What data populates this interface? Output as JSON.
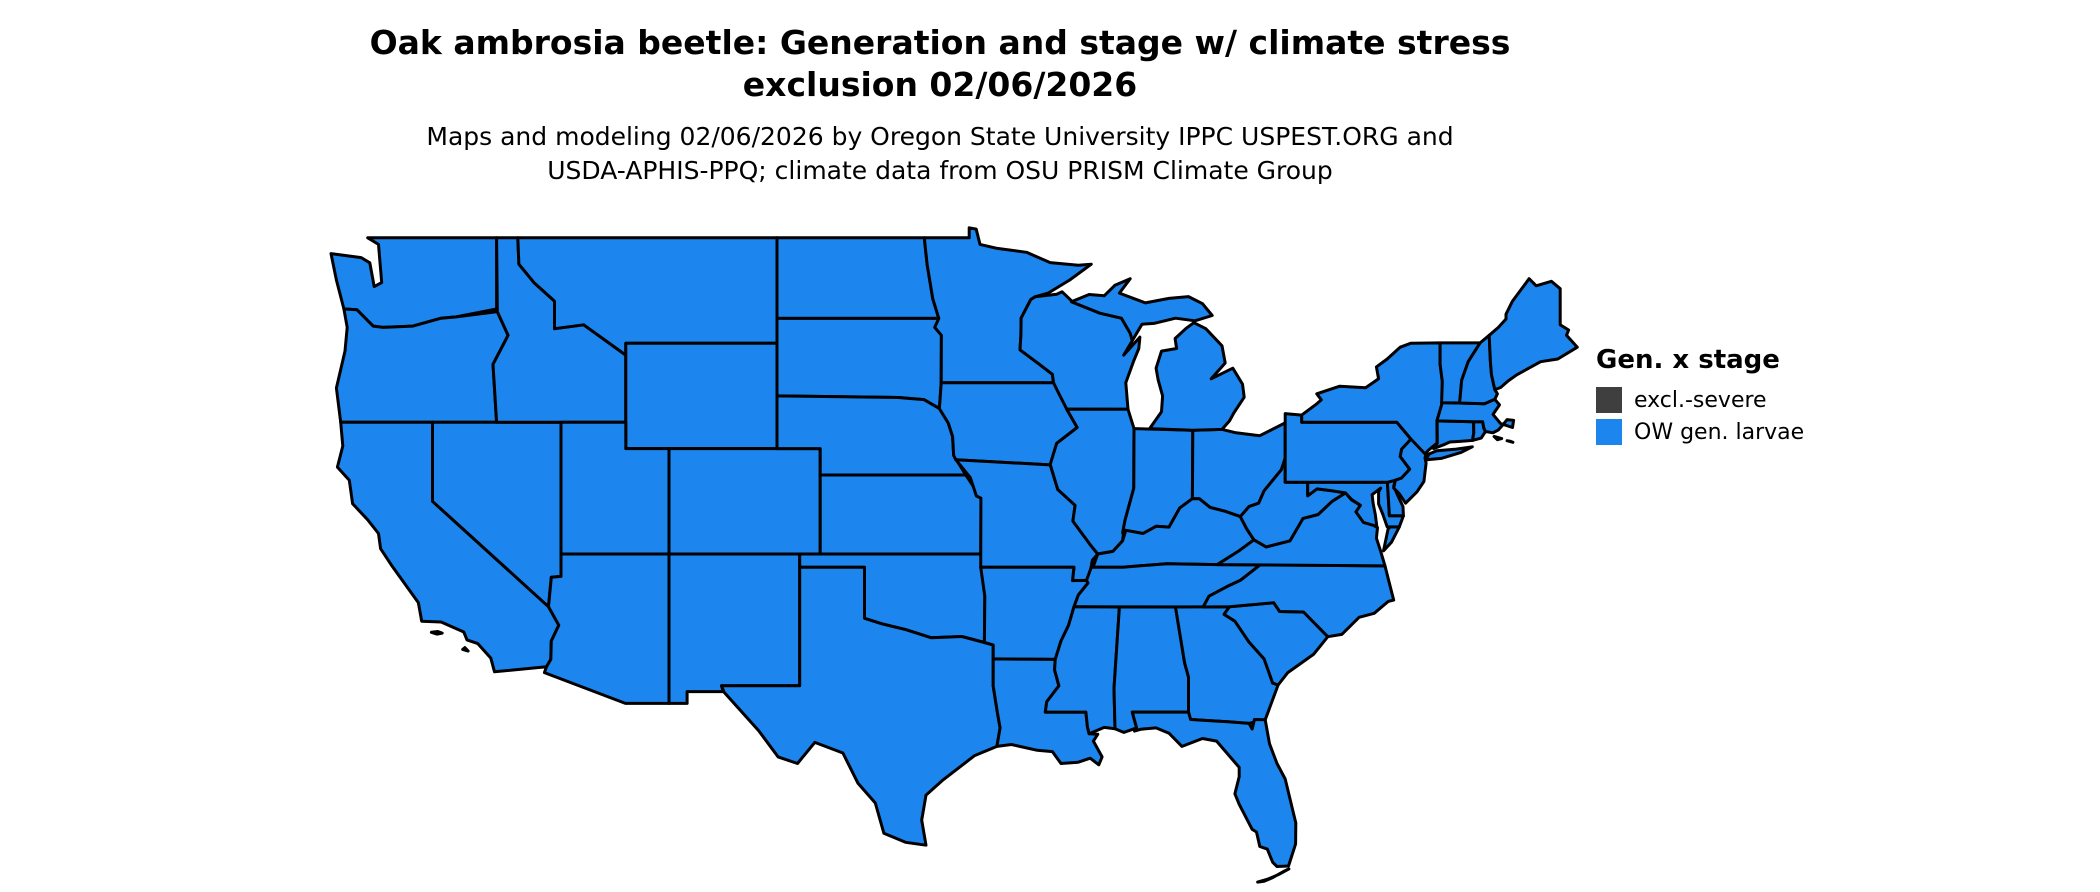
{
  "title": {
    "line1": "Oak ambrosia beetle: Generation and stage w/ climate stress",
    "line2": "exclusion 02/06/2026"
  },
  "subtitle": {
    "line1": "Maps and modeling 02/06/2026 by Oregon State University IPPC USPEST.ORG and",
    "line2": "USDA-APHIS-PPQ; climate data from OSU PRISM Climate Group"
  },
  "legend": {
    "title": "Gen. x stage",
    "items": [
      {
        "label": "excl.-severe",
        "color": "#3F3F3F"
      },
      {
        "label": "OW gen. larvae",
        "color": "#1C86EE"
      }
    ]
  },
  "map": {
    "region": "Contiguous United States",
    "fill_color": "#1C86EE",
    "border_color": "#000000",
    "all_states_value": "OW gen. larvae"
  }
}
